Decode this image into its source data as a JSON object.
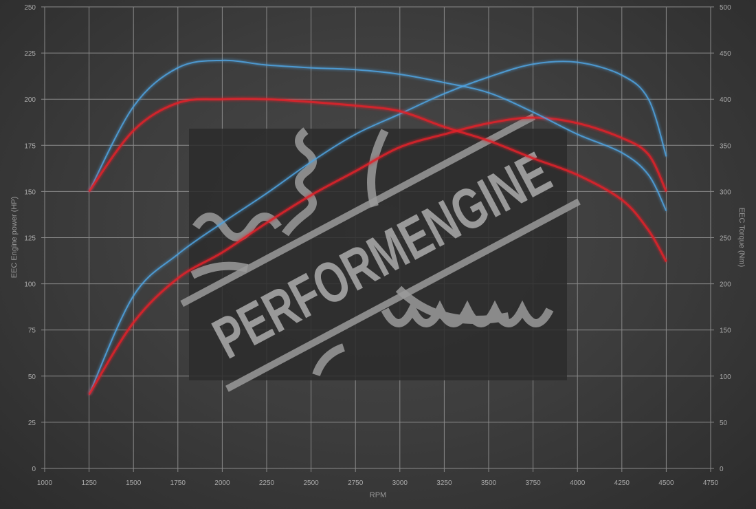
{
  "chart_data": {
    "type": "line",
    "xlabel": "RPM",
    "ylabel": "EEC Engine power (HP)",
    "y2label": "EEC Torque (Nm)",
    "xlim": [
      1000,
      4750
    ],
    "ylim": [
      0,
      250
    ],
    "y2lim": [
      0,
      500
    ],
    "x_ticks": [
      1000,
      1250,
      1500,
      1750,
      2000,
      2250,
      2500,
      2750,
      3000,
      3250,
      3500,
      3750,
      4000,
      4250,
      4500,
      4750
    ],
    "y_ticks": [
      0,
      25,
      50,
      75,
      100,
      125,
      150,
      175,
      200,
      225,
      250
    ],
    "y2_ticks": [
      0,
      50,
      100,
      150,
      200,
      250,
      300,
      350,
      400,
      450,
      500
    ],
    "grid": true,
    "watermark": "PERFORMENGINE",
    "x": [
      1250,
      1500,
      1750,
      2000,
      2250,
      2500,
      2750,
      3000,
      3250,
      3500,
      3750,
      4000,
      4250,
      4400,
      4500
    ],
    "series": [
      {
        "axis": "left",
        "color": "#4fa3e0",
        "values": [
          40,
          93.5,
          116,
          133,
          149,
          166,
          181,
          192,
          203,
          212,
          219,
          220,
          213,
          200,
          169
        ]
      },
      {
        "axis": "left",
        "color": "#e0202a",
        "values": [
          40,
          79,
          103,
          117,
          133,
          148,
          161,
          174,
          181,
          187,
          190,
          187,
          179,
          170,
          150
        ]
      },
      {
        "axis": "right",
        "color": "#4fa3e0",
        "values": [
          300,
          392,
          434,
          442,
          437,
          434,
          432,
          427,
          418,
          407,
          386,
          362,
          342,
          318,
          279
        ]
      },
      {
        "axis": "right",
        "color": "#e0202a",
        "values": [
          300,
          366,
          396,
          400,
          400,
          397,
          393,
          387,
          370,
          355,
          336,
          318,
          291,
          258,
          224
        ]
      }
    ]
  }
}
